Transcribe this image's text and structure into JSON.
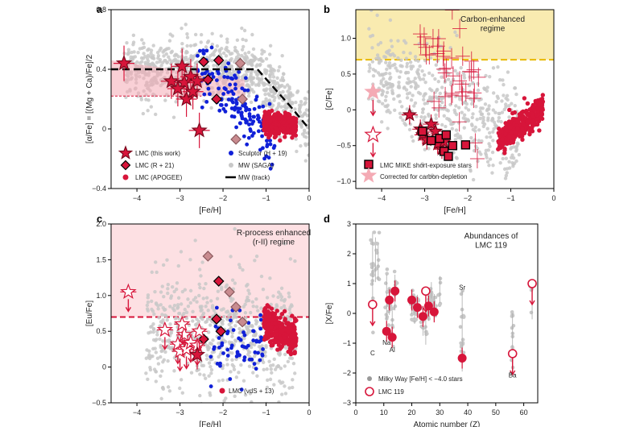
{
  "colors": {
    "red": "#d7153a",
    "pink": "#f4aab4",
    "grey": "#c8c8c8",
    "blue": "#1020d8",
    "yellow": "#f2d250",
    "diamond_light": "#c98b8f",
    "black": "#000000"
  },
  "chart_data": [
    {
      "panel": "a",
      "type": "scatter",
      "xlabel": "[Fe/H]",
      "ylabel": "[α/Fe] = [(Mg + Ca)/Fe]/2",
      "xlim": [
        -4.6,
        0
      ],
      "ylim": [
        -0.4,
        0.8
      ],
      "xticks": [
        "−4",
        "−3",
        "−2",
        "−1",
        "0"
      ],
      "yticks": [
        "−0.4",
        "0",
        "0.4",
        "0.8"
      ],
      "legend": [
        "LMC (this work)",
        "LMC (R + 21)",
        "LMC (APOGEE)",
        "Sculptor (H + 19)",
        "MW (SAGA)",
        "MW (track)"
      ],
      "mw_track": [
        [
          -4.6,
          0.4
        ],
        [
          -1.2,
          0.4
        ],
        [
          -0.8,
          0.27
        ],
        [
          -0.4,
          0.14
        ],
        [
          0,
          0.0
        ]
      ],
      "lmc_this_work": [
        [
          -4.3,
          0.44
        ],
        [
          -3.2,
          0.32
        ],
        [
          -2.95,
          0.42
        ],
        [
          -2.9,
          0.31
        ],
        [
          -2.75,
          0.35
        ],
        [
          -2.85,
          0.2
        ],
        [
          -2.6,
          0.32
        ],
        [
          -2.55,
          -0.01
        ],
        [
          -3.05,
          0.27
        ],
        [
          -2.7,
          0.25
        ]
      ],
      "lmc_r21_dark": [
        [
          -2.1,
          0.46
        ],
        [
          -2.45,
          0.45
        ],
        [
          -2.35,
          0.33
        ],
        [
          -2.15,
          0.2
        ]
      ],
      "lmc_r21_light": [
        [
          -1.6,
          0.44
        ],
        [
          -1.55,
          0.2
        ],
        [
          -1.7,
          -0.07
        ]
      ],
      "shaded_band": {
        "x": [
          -4.6,
          -1.5
        ],
        "y_upper": [
          0.46,
          0.33
        ],
        "y_lower": [
          0.22,
          0.22
        ]
      }
    },
    {
      "panel": "b",
      "type": "scatter",
      "xlabel": "[Fe/H]",
      "ylabel": "[C/Fe]",
      "xlim": [
        -4.6,
        0
      ],
      "ylim": [
        -1.1,
        1.4
      ],
      "xticks": [
        "−4",
        "−3",
        "−2",
        "−1",
        "0"
      ],
      "yticks": [
        "−1.0",
        "−0.5",
        "0",
        "0.5",
        "1.0"
      ],
      "region_label": "Carbon-enhanced\nregime",
      "carbon_threshold": 0.7,
      "legend": [
        "LMC MIKE short-exposure stars",
        "Corrected for carbon-depletion"
      ],
      "lmc_stars": [
        [
          -3.35,
          -0.07
        ],
        [
          -3.1,
          -0.27
        ],
        [
          -3.05,
          -0.35
        ],
        [
          -2.95,
          -0.42
        ],
        [
          -2.85,
          -0.2
        ],
        [
          -2.75,
          -0.3
        ],
        [
          -2.7,
          -0.48
        ],
        [
          -2.6,
          -0.55
        ],
        [
          -2.55,
          -0.45
        ]
      ],
      "mike_squares": [
        [
          -3.05,
          -0.3
        ],
        [
          -2.85,
          -0.43
        ],
        [
          -2.65,
          -0.4
        ],
        [
          -2.55,
          -0.58
        ],
        [
          -2.45,
          -0.65
        ],
        [
          -2.35,
          -0.5
        ],
        [
          -2.05,
          -0.49
        ],
        [
          -2.5,
          -0.35
        ]
      ],
      "lmc119_open": [
        -4.2,
        -0.35
      ],
      "lmc119_corrected": [
        -4.2,
        0.25
      ]
    },
    {
      "panel": "c",
      "type": "scatter",
      "xlabel": "[Fe/H]",
      "ylabel": "[Eu/Fe]",
      "xlim": [
        -4.6,
        0
      ],
      "ylim": [
        -0.5,
        2.0
      ],
      "xticks": [
        "−4",
        "−3",
        "−2",
        "−1",
        "0"
      ],
      "yticks": [
        "−0.5",
        "0",
        "0.5",
        "1.0",
        "1.5",
        "2.0"
      ],
      "region_label": "R-process enhanced\n(r-II) regime",
      "threshold": 0.7,
      "legend": [
        "LMC (vdS + 13)"
      ],
      "lmc_open_stars": [
        [
          -4.2,
          1.05
        ],
        [
          -3.35,
          0.52
        ],
        [
          -3.05,
          0.32
        ],
        [
          -3.0,
          0.22
        ],
        [
          -2.9,
          0.45
        ],
        [
          -2.95,
          0.6
        ],
        [
          -2.85,
          0.25
        ],
        [
          -2.75,
          0.34
        ],
        [
          -2.6,
          0.3
        ],
        [
          -2.55,
          0.5
        ]
      ],
      "lmc_filled_star": [
        -2.6,
        0.17
      ],
      "lmc_r21_dark": [
        [
          -2.1,
          1.2
        ],
        [
          -2.15,
          0.67
        ],
        [
          -2.05,
          0.5
        ],
        [
          -2.45,
          0.39
        ]
      ],
      "lmc_r21_light": [
        [
          -2.35,
          1.55
        ],
        [
          -1.85,
          1.05
        ],
        [
          -1.7,
          0.84
        ],
        [
          -1.55,
          0.63
        ]
      ]
    },
    {
      "panel": "d",
      "type": "scatter",
      "title": "Abundances of\nLMC 119",
      "xlabel": "Atomic number (Z)",
      "ylabel": "[X/Fe]",
      "xlim": [
        0,
        65
      ],
      "ylim": [
        -3,
        3
      ],
      "xticks": [
        "0",
        "10",
        "20",
        "30",
        "40",
        "50",
        "60"
      ],
      "yticks": [
        "−3",
        "−2",
        "−1",
        "0",
        "1",
        "2",
        "3"
      ],
      "legend": [
        "Milky Way [Fe/H] < −4.0 stars",
        "LMC 119"
      ],
      "element_labels": [
        [
          "C",
          6,
          -1.4
        ],
        [
          "Na",
          11,
          -1.05
        ],
        [
          "Al",
          13,
          -1.3
        ],
        [
          "Sr",
          38,
          0.8
        ],
        [
          "Ba",
          56,
          -2.15
        ]
      ],
      "lmc119_filled": [
        [
          11,
          -0.6
        ],
        [
          12,
          0.45
        ],
        [
          13,
          -0.8
        ],
        [
          14,
          0.75
        ],
        [
          20,
          0.45
        ],
        [
          22,
          0.2
        ],
        [
          24,
          -0.1
        ],
        [
          26,
          0.25
        ],
        [
          28,
          0.05
        ],
        [
          38,
          -1.5
        ]
      ],
      "lmc119_open_limits": [
        [
          6,
          0.3
        ],
        [
          25,
          0.75
        ],
        [
          56,
          -1.35
        ],
        [
          63,
          1.0
        ]
      ]
    }
  ]
}
